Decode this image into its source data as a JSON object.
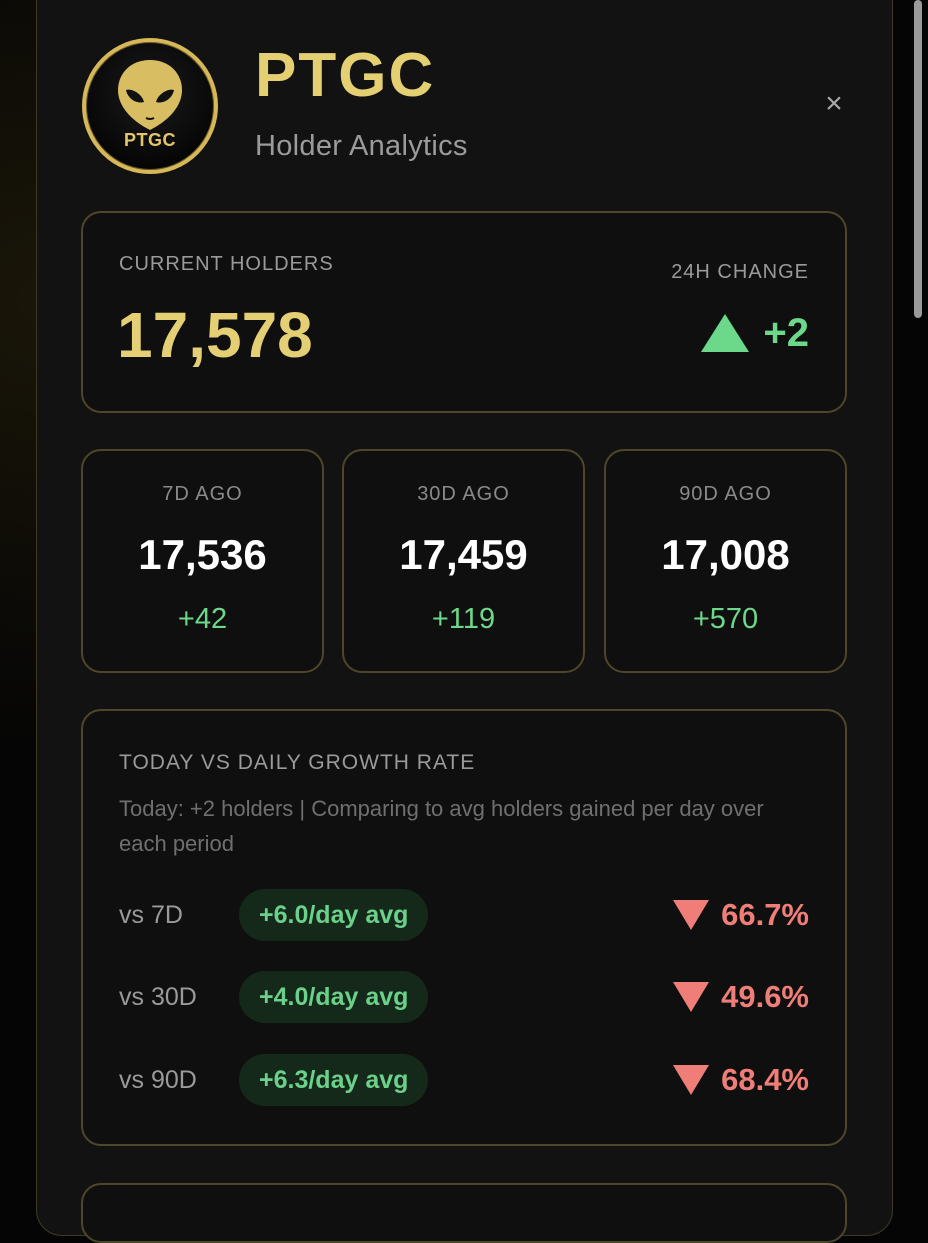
{
  "header": {
    "title": "PTGC",
    "subtitle": "Holder Analytics",
    "logo_text": "PTGC",
    "close_symbol": "×"
  },
  "current": {
    "label": "CURRENT HOLDERS",
    "value": "17,578",
    "change_label": "24H CHANGE",
    "change_value": "+2",
    "change_icon": "triangle-up-icon"
  },
  "periods": [
    {
      "label": "7D AGO",
      "value": "17,536",
      "delta": "+42"
    },
    {
      "label": "30D AGO",
      "value": "17,459",
      "delta": "+119"
    },
    {
      "label": "90D AGO",
      "value": "17,008",
      "delta": "+570"
    }
  ],
  "growth": {
    "title": "TODAY VS DAILY GROWTH RATE",
    "description": "Today: +2 holders  |  Comparing to avg holders gained per day over each period",
    "rows": [
      {
        "label": "vs 7D",
        "avg": "+6.0/day avg",
        "pct": "66.7%"
      },
      {
        "label": "vs 30D",
        "avg": "+4.0/day avg",
        "pct": "49.6%"
      },
      {
        "label": "vs 90D",
        "avg": "+6.3/day avg",
        "pct": "68.4%"
      }
    ],
    "pct_icon": "triangle-down-icon"
  },
  "colors": {
    "accent_gold": "#e5cf75",
    "positive": "#6cd98a",
    "negative": "#ef7e78",
    "background": "#121212"
  }
}
